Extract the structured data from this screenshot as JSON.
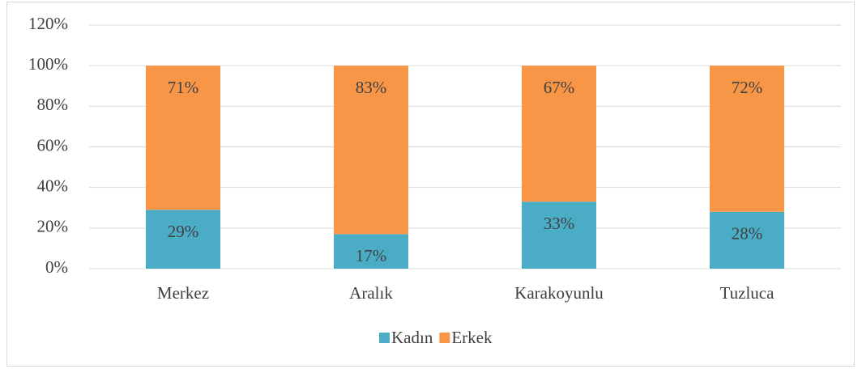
{
  "chart_data": {
    "type": "stacked-bar",
    "categories": [
      "Merkez",
      "Aralık",
      "Karakoyunlu",
      "Tuzluca"
    ],
    "series": [
      {
        "name": "Kadın",
        "color": "#4bacc6",
        "values": [
          29,
          17,
          33,
          28
        ],
        "value_labels": [
          "29%",
          "17%",
          "33%",
          "28%"
        ]
      },
      {
        "name": "Erkek",
        "color": "#f79646",
        "values": [
          71,
          83,
          67,
          72
        ],
        "value_labels": [
          "71%",
          "83%",
          "67%",
          "72%"
        ]
      }
    ],
    "ylim": [
      0,
      120
    ],
    "yticks": [
      {
        "value": 0,
        "label": "0%"
      },
      {
        "value": 20,
        "label": "20%"
      },
      {
        "value": 40,
        "label": "40%"
      },
      {
        "value": 60,
        "label": "60%"
      },
      {
        "value": 80,
        "label": "80%"
      },
      {
        "value": 100,
        "label": "100%"
      },
      {
        "value": 120,
        "label": "120%"
      }
    ],
    "grid": true,
    "legend": "bottom"
  }
}
